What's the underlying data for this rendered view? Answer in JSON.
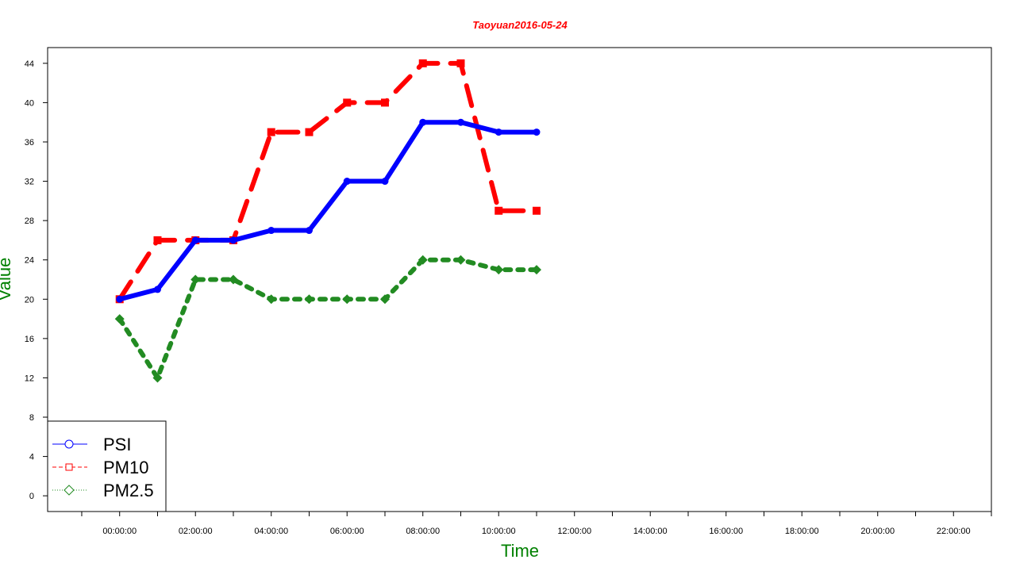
{
  "chart_data": {
    "type": "line",
    "title": "Taoyuan2016-05-24",
    "xlabel": "Time",
    "ylabel": "Value",
    "x_tick_labels": [
      "00:00:00",
      "02:00:00",
      "04:00:00",
      "06:00:00",
      "08:00:00",
      "10:00:00",
      "12:00:00",
      "14:00:00",
      "16:00:00",
      "18:00:00",
      "20:00:00",
      "22:00:00"
    ],
    "x_hours": [
      0,
      1,
      2,
      3,
      4,
      5,
      6,
      7,
      8,
      9,
      10,
      11
    ],
    "xlim_hours": [
      -1.9,
      23.0
    ],
    "y_ticks": [
      0,
      4,
      8,
      12,
      16,
      20,
      24,
      28,
      32,
      36,
      40,
      44
    ],
    "ylim": [
      -1.6,
      45.6
    ],
    "legend_position": "bottom-left",
    "series": [
      {
        "name": "PSI",
        "color": "#0000ff",
        "line_style": "solid",
        "marker": "circle",
        "values": [
          20,
          21,
          26,
          26,
          27,
          27,
          32,
          32,
          38,
          38,
          37,
          37
        ]
      },
      {
        "name": "PM10",
        "color": "#ff0000",
        "line_style": "dashed",
        "marker": "square",
        "values": [
          20,
          26,
          26,
          26,
          37,
          37,
          40,
          40,
          44,
          44,
          29,
          29
        ]
      },
      {
        "name": "PM2.5",
        "color": "#228b22",
        "line_style": "dotted",
        "marker": "diamond",
        "values": [
          18,
          12,
          22,
          22,
          20,
          20,
          20,
          20,
          24,
          24,
          23,
          23
        ]
      }
    ],
    "colors": {
      "title": "#ff0000",
      "axis_title": "#008000"
    }
  }
}
